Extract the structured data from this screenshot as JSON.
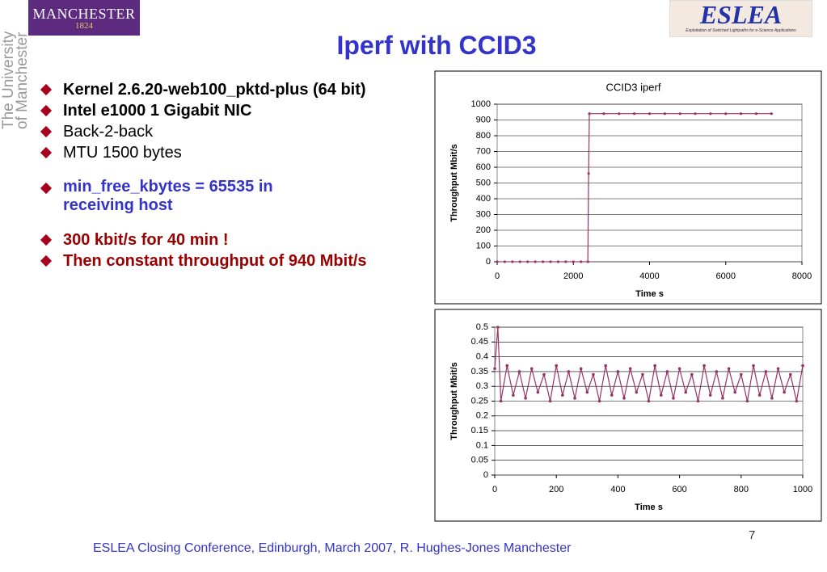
{
  "header": {
    "logo_left": "MANCHESTER",
    "logo_left_year": "1824",
    "university": [
      "The University",
      "of Manchester"
    ],
    "logo_right": "ESLEA",
    "logo_right_subtitle": "Exploitation of Switched Lightpaths for e-Science Applications",
    "title": "Iperf with CCID3"
  },
  "bullets": [
    "Kernel  2.6.20-web100_pktd-plus (64 bit)",
    "Intel e1000 1 Gigabit  NIC",
    "Back-2-back",
    "MTU 1500 bytes",
    "min_free_kbytes = 65535 in receiving host",
    "300 kbit/s for 40 min !",
    "Then constant throughput of 940 Mbit/s"
  ],
  "footer": {
    "text": "ESLEA Closing Conference, Edinburgh, March 2007,  R. Hughes-Jones  Manchester",
    "page": "7"
  },
  "chart_data": [
    {
      "type": "line",
      "title": "CCID3 iperf",
      "x_label": "Time s",
      "y_label": "Throughput Mbit/s",
      "color": "#993366",
      "x": [
        0,
        200,
        400,
        600,
        800,
        1000,
        1200,
        1400,
        1600,
        1800,
        2000,
        2200,
        2380,
        2400,
        2420,
        2800,
        3200,
        3600,
        4000,
        4400,
        4800,
        5200,
        5600,
        6000,
        6400,
        6800,
        7200
      ],
      "values": [
        0.3,
        0.3,
        0.3,
        0.3,
        0.3,
        0.3,
        0.3,
        0.3,
        0.3,
        0.3,
        0.3,
        0.3,
        0.3,
        560,
        940,
        940,
        940,
        940,
        940,
        940,
        940,
        940,
        940,
        940,
        940,
        940,
        940
      ],
      "xlim": [
        0,
        8000
      ],
      "xticks": [
        0,
        2000,
        4000,
        6000,
        8000
      ],
      "ylim": [
        0,
        1000
      ],
      "yticks": [
        0,
        100,
        200,
        300,
        400,
        500,
        600,
        700,
        800,
        900,
        1000
      ],
      "grid": true
    },
    {
      "type": "line",
      "x_label": "Time s",
      "y_label": "Throughput Mbit/s",
      "color": "#993366",
      "x": [
        0,
        10,
        20,
        40,
        60,
        80,
        100,
        120,
        140,
        160,
        180,
        200,
        220,
        240,
        260,
        280,
        300,
        320,
        340,
        360,
        380,
        400,
        420,
        440,
        460,
        480,
        500,
        520,
        540,
        560,
        580,
        600,
        620,
        640,
        660,
        680,
        700,
        720,
        740,
        760,
        780,
        800,
        820,
        840,
        860,
        880,
        900,
        920,
        940,
        960,
        980,
        1000
      ],
      "values": [
        0.36,
        0.5,
        0.25,
        0.37,
        0.27,
        0.35,
        0.26,
        0.36,
        0.28,
        0.34,
        0.25,
        0.37,
        0.27,
        0.35,
        0.26,
        0.36,
        0.28,
        0.34,
        0.25,
        0.37,
        0.27,
        0.35,
        0.26,
        0.36,
        0.28,
        0.34,
        0.25,
        0.37,
        0.27,
        0.35,
        0.26,
        0.36,
        0.28,
        0.34,
        0.25,
        0.37,
        0.27,
        0.35,
        0.26,
        0.36,
        0.28,
        0.34,
        0.25,
        0.37,
        0.27,
        0.35,
        0.26,
        0.36,
        0.28,
        0.34,
        0.25,
        0.37
      ],
      "xlim": [
        0,
        1000
      ],
      "xticks": [
        0,
        200,
        400,
        600,
        800,
        1000
      ],
      "ylim": [
        0,
        0.5
      ],
      "yticks": [
        0,
        0.05,
        0.1,
        0.15,
        0.2,
        0.25,
        0.3,
        0.35,
        0.4,
        0.45,
        0.5
      ],
      "grid": true
    }
  ]
}
